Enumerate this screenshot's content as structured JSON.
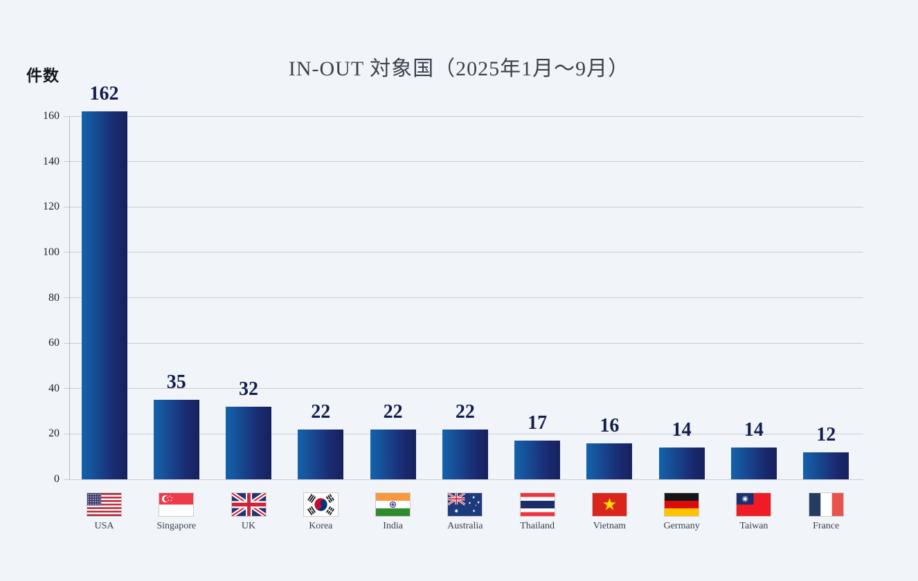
{
  "title": "IN-OUT 対象国（2025年1月～9月）",
  "y_axis": {
    "label": "件数",
    "ticks": [
      0,
      20,
      40,
      60,
      80,
      100,
      120,
      140,
      160
    ],
    "max": 160
  },
  "chart_data": {
    "type": "bar",
    "title": "IN-OUT 対象国（2025年1月～9月）",
    "xlabel": "",
    "ylabel": "件数",
    "ylim": [
      0,
      160
    ],
    "grid": true,
    "legend": "none",
    "categories": [
      "USA",
      "Singapore",
      "UK",
      "Korea",
      "India",
      "Australia",
      "Thailand",
      "Vietnam",
      "Germany",
      "Taiwan",
      "France"
    ],
    "values": [
      162,
      35,
      32,
      22,
      22,
      22,
      17,
      16,
      14,
      14,
      12
    ],
    "flag_icons": [
      "flag-usa",
      "flag-singapore",
      "flag-uk",
      "flag-korea",
      "flag-india",
      "flag-australia",
      "flag-thailand",
      "flag-vietnam",
      "flag-germany",
      "flag-taiwan",
      "flag-france"
    ],
    "colors": {
      "background": "#f1f5f9",
      "bar_gradient_start": "#1463ac",
      "bar_gradient_end": "#16215c",
      "value_label": "#141e4e",
      "gridline": "#c9cdd4",
      "title_text": "#3a414c"
    }
  }
}
